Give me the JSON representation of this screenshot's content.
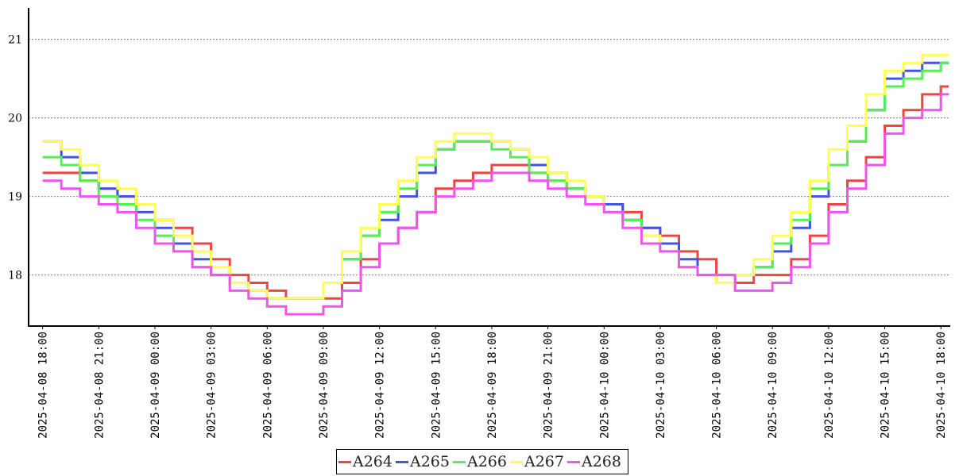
{
  "chart_data": {
    "type": "line",
    "title": "",
    "xlabel": "",
    "ylabel": "",
    "ylim": [
      17.35,
      21.4
    ],
    "yticks": [
      "18",
      "19",
      "20",
      "21"
    ],
    "xlim": [
      "2025-04-08 17:15",
      "2025-04-10 18:30"
    ],
    "xticks": [
      "2025-04-08 18:00",
      "2025-04-08 21:00",
      "2025-04-09 00:00",
      "2025-04-09 03:00",
      "2025-04-09 06:00",
      "2025-04-09 09:00",
      "2025-04-09 12:00",
      "2025-04-09 15:00",
      "2025-04-09 18:00",
      "2025-04-09 21:00",
      "2025-04-10 00:00",
      "2025-04-10 03:00",
      "2025-04-10 06:00",
      "2025-04-10 09:00",
      "2025-04-10 12:00",
      "2025-04-10 15:00",
      "2025-04-10 18:00"
    ],
    "grid": "horizontal dotted",
    "legend_position": "bottom",
    "x": [
      "2025-04-08 18:00",
      "2025-04-08 19:00",
      "2025-04-08 20:00",
      "2025-04-08 21:00",
      "2025-04-08 22:00",
      "2025-04-08 23:00",
      "2025-04-09 00:00",
      "2025-04-09 01:00",
      "2025-04-09 02:00",
      "2025-04-09 03:00",
      "2025-04-09 04:00",
      "2025-04-09 05:00",
      "2025-04-09 06:00",
      "2025-04-09 07:00",
      "2025-04-09 08:00",
      "2025-04-09 09:00",
      "2025-04-09 10:00",
      "2025-04-09 11:00",
      "2025-04-09 12:00",
      "2025-04-09 13:00",
      "2025-04-09 14:00",
      "2025-04-09 15:00",
      "2025-04-09 16:00",
      "2025-04-09 17:00",
      "2025-04-09 18:00",
      "2025-04-09 19:00",
      "2025-04-09 20:00",
      "2025-04-09 21:00",
      "2025-04-09 22:00",
      "2025-04-09 23:00",
      "2025-04-10 00:00",
      "2025-04-10 01:00",
      "2025-04-10 02:00",
      "2025-04-10 03:00",
      "2025-04-10 04:00",
      "2025-04-10 05:00",
      "2025-04-10 06:00",
      "2025-04-10 07:00",
      "2025-04-10 08:00",
      "2025-04-10 09:00",
      "2025-04-10 10:00",
      "2025-04-10 11:00",
      "2025-04-10 12:00",
      "2025-04-10 13:00",
      "2025-04-10 14:00",
      "2025-04-10 15:00",
      "2025-04-10 16:00",
      "2025-04-10 17:00",
      "2025-04-10 18:00"
    ],
    "series": [
      {
        "name": "A264",
        "color": "#ee4444",
        "values": [
          19.3,
          19.3,
          19.2,
          19.1,
          19.0,
          18.9,
          18.7,
          18.6,
          18.4,
          18.2,
          18.0,
          17.9,
          17.8,
          17.7,
          17.7,
          17.7,
          17.9,
          18.2,
          18.4,
          18.6,
          18.8,
          19.1,
          19.2,
          19.3,
          19.4,
          19.4,
          19.3,
          19.2,
          19.1,
          19.0,
          18.9,
          18.8,
          18.6,
          18.5,
          18.3,
          18.2,
          18.0,
          17.9,
          18.0,
          18.0,
          18.2,
          18.5,
          18.9,
          19.2,
          19.5,
          19.9,
          20.1,
          20.3,
          20.4
        ]
      },
      {
        "name": "A265",
        "color": "#4455dd",
        "values": [
          19.7,
          19.5,
          19.3,
          19.1,
          19.0,
          18.8,
          18.6,
          18.4,
          18.2,
          18.0,
          17.9,
          17.8,
          17.7,
          17.7,
          17.7,
          17.9,
          18.2,
          18.5,
          18.7,
          19.0,
          19.3,
          19.6,
          19.7,
          19.7,
          19.7,
          19.6,
          19.4,
          19.3,
          19.1,
          19.0,
          18.9,
          18.7,
          18.6,
          18.4,
          18.2,
          18.0,
          17.9,
          18.0,
          18.1,
          18.3,
          18.6,
          19.0,
          19.4,
          19.7,
          20.1,
          20.5,
          20.6,
          20.7,
          20.7
        ]
      },
      {
        "name": "A266",
        "color": "#55ee55",
        "values": [
          19.5,
          19.4,
          19.2,
          19.0,
          18.9,
          18.7,
          18.5,
          18.3,
          18.1,
          18.0,
          17.9,
          17.8,
          17.7,
          17.7,
          17.7,
          17.9,
          18.2,
          18.5,
          18.8,
          19.1,
          19.4,
          19.6,
          19.7,
          19.7,
          19.6,
          19.5,
          19.3,
          19.2,
          19.1,
          19.0,
          18.8,
          18.7,
          18.5,
          18.3,
          18.1,
          18.0,
          17.9,
          18.0,
          18.1,
          18.4,
          18.7,
          19.1,
          19.4,
          19.7,
          20.1,
          20.4,
          20.5,
          20.6,
          20.7
        ]
      },
      {
        "name": "A267",
        "color": "#ffff55",
        "values": [
          19.7,
          19.6,
          19.4,
          19.2,
          19.1,
          18.9,
          18.7,
          18.5,
          18.3,
          18.1,
          17.9,
          17.8,
          17.7,
          17.7,
          17.7,
          17.9,
          18.3,
          18.6,
          18.9,
          19.2,
          19.5,
          19.7,
          19.8,
          19.8,
          19.7,
          19.6,
          19.5,
          19.3,
          19.2,
          19.0,
          18.8,
          18.6,
          18.5,
          18.3,
          18.1,
          18.0,
          17.9,
          18.0,
          18.2,
          18.5,
          18.8,
          19.2,
          19.6,
          19.9,
          20.3,
          20.6,
          20.7,
          20.8,
          20.8
        ]
      },
      {
        "name": "A268",
        "color": "#ee55ee",
        "values": [
          19.2,
          19.1,
          19.0,
          18.9,
          18.8,
          18.6,
          18.4,
          18.3,
          18.1,
          18.0,
          17.8,
          17.7,
          17.6,
          17.5,
          17.5,
          17.6,
          17.8,
          18.1,
          18.4,
          18.6,
          18.8,
          19.0,
          19.1,
          19.2,
          19.3,
          19.3,
          19.2,
          19.1,
          19.0,
          18.9,
          18.8,
          18.6,
          18.4,
          18.3,
          18.1,
          18.0,
          18.0,
          17.8,
          17.8,
          17.9,
          18.1,
          18.4,
          18.8,
          19.1,
          19.4,
          19.8,
          20.0,
          20.1,
          20.3
        ]
      }
    ]
  }
}
